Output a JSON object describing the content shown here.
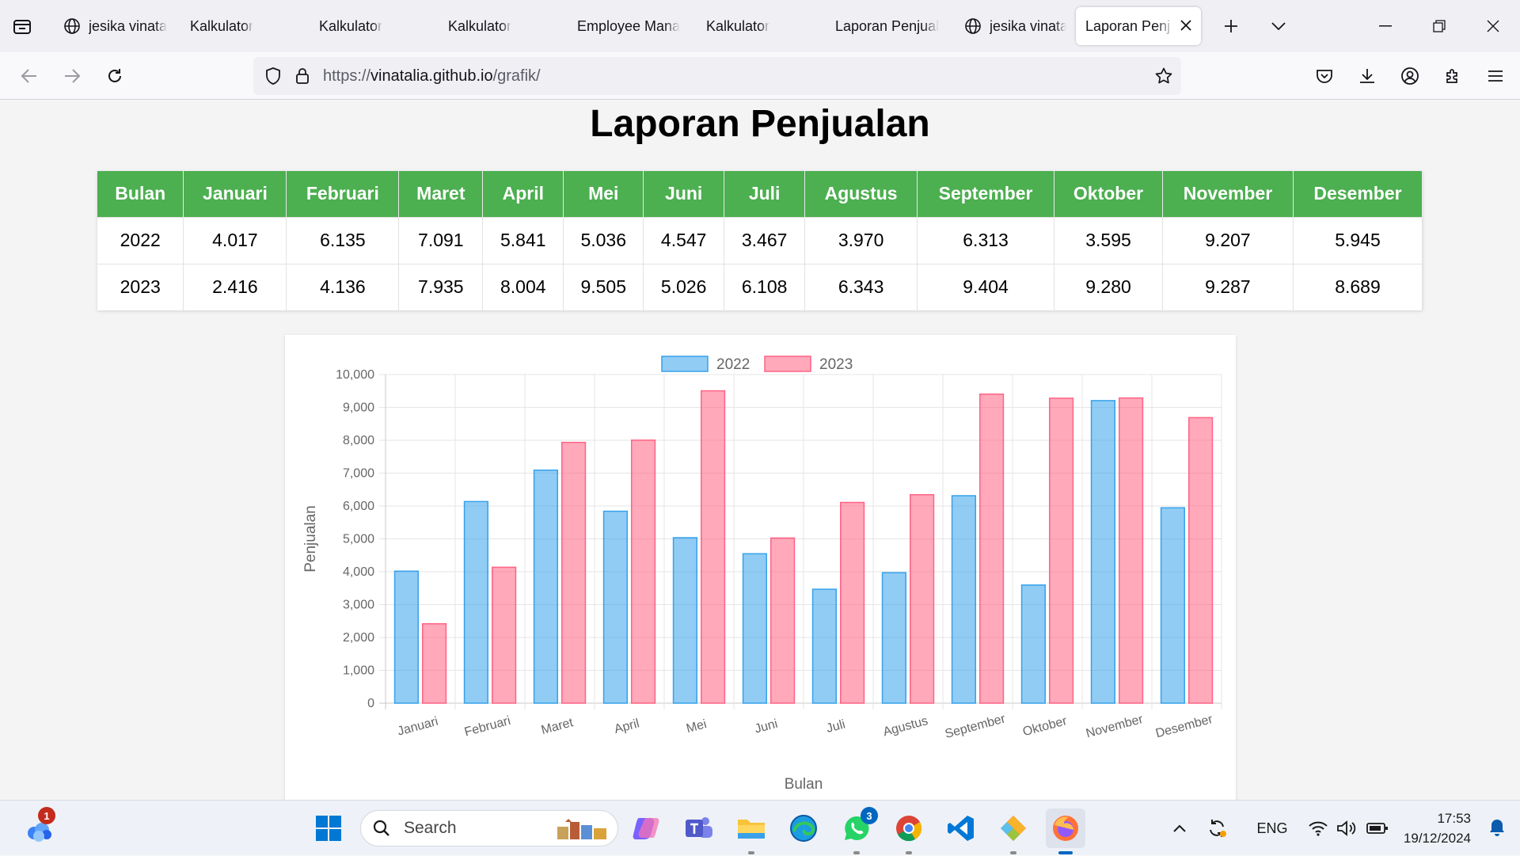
{
  "browser": {
    "tabs": [
      {
        "label": "jesika vinata",
        "icon": "globe-icon",
        "active": false
      },
      {
        "label": "Kalkulator",
        "icon": "none",
        "active": false
      },
      {
        "label": "Kalkulator",
        "icon": "none",
        "active": false
      },
      {
        "label": "Kalkulator",
        "icon": "none",
        "active": false
      },
      {
        "label": "Employee Mana",
        "icon": "none",
        "active": false
      },
      {
        "label": "Kalkulator",
        "icon": "none",
        "active": false
      },
      {
        "label": "Laporan Penjual",
        "icon": "none",
        "active": false
      },
      {
        "label": "jesika vinata",
        "icon": "globe-icon",
        "active": false
      },
      {
        "label": "Laporan Penj",
        "icon": "none",
        "active": true
      }
    ],
    "url": {
      "scheme": "https://",
      "host": "vinatalia.github.io",
      "path": "/grafik/"
    }
  },
  "page": {
    "title": "Laporan Penjualan",
    "table": {
      "headers": [
        "Bulan",
        "Januari",
        "Februari",
        "Maret",
        "April",
        "Mei",
        "Juni",
        "Juli",
        "Agustus",
        "September",
        "Oktober",
        "November",
        "Desember"
      ],
      "rows": [
        [
          "2022",
          "4.017",
          "6.135",
          "7.091",
          "5.841",
          "5.036",
          "4.547",
          "3.467",
          "3.970",
          "6.313",
          "3.595",
          "9.207",
          "5.945"
        ],
        [
          "2023",
          "2.416",
          "4.136",
          "7.935",
          "8.004",
          "9.505",
          "5.026",
          "6.108",
          "6.343",
          "9.404",
          "9.280",
          "9.287",
          "8.689"
        ]
      ]
    }
  },
  "chart_data": {
    "type": "bar",
    "title": "",
    "xlabel": "Bulan",
    "ylabel": "Penjualan",
    "ylim": [
      0,
      10000
    ],
    "yticks": [
      0,
      1000,
      2000,
      3000,
      4000,
      5000,
      6000,
      7000,
      8000,
      9000,
      10000
    ],
    "ytick_labels": [
      "0",
      "1,000",
      "2,000",
      "3,000",
      "4,000",
      "5,000",
      "6,000",
      "7,000",
      "8,000",
      "9,000",
      "10,000"
    ],
    "legend_position": "top-center",
    "grid": true,
    "categories": [
      "Januari",
      "Februari",
      "Maret",
      "April",
      "Mei",
      "Juni",
      "Juli",
      "Agustus",
      "September",
      "Oktober",
      "November",
      "Desember"
    ],
    "series": [
      {
        "name": "2022",
        "color": "#36a2eb",
        "values": [
          4017,
          6135,
          7091,
          5841,
          5036,
          4547,
          3467,
          3970,
          6313,
          3595,
          9207,
          5945
        ]
      },
      {
        "name": "2023",
        "color": "#ff6384",
        "values": [
          2416,
          4136,
          7935,
          8004,
          9505,
          5026,
          6108,
          6343,
          9404,
          9280,
          9287,
          8689
        ]
      }
    ]
  },
  "taskbar": {
    "search_label": "Search",
    "widgets_badge": "1",
    "whatsapp_badge": "3",
    "language": "ENG",
    "time": "17:53",
    "date": "19/12/2024"
  },
  "colors": {
    "table_header": "#4caf50",
    "accent": "#0067c0"
  }
}
